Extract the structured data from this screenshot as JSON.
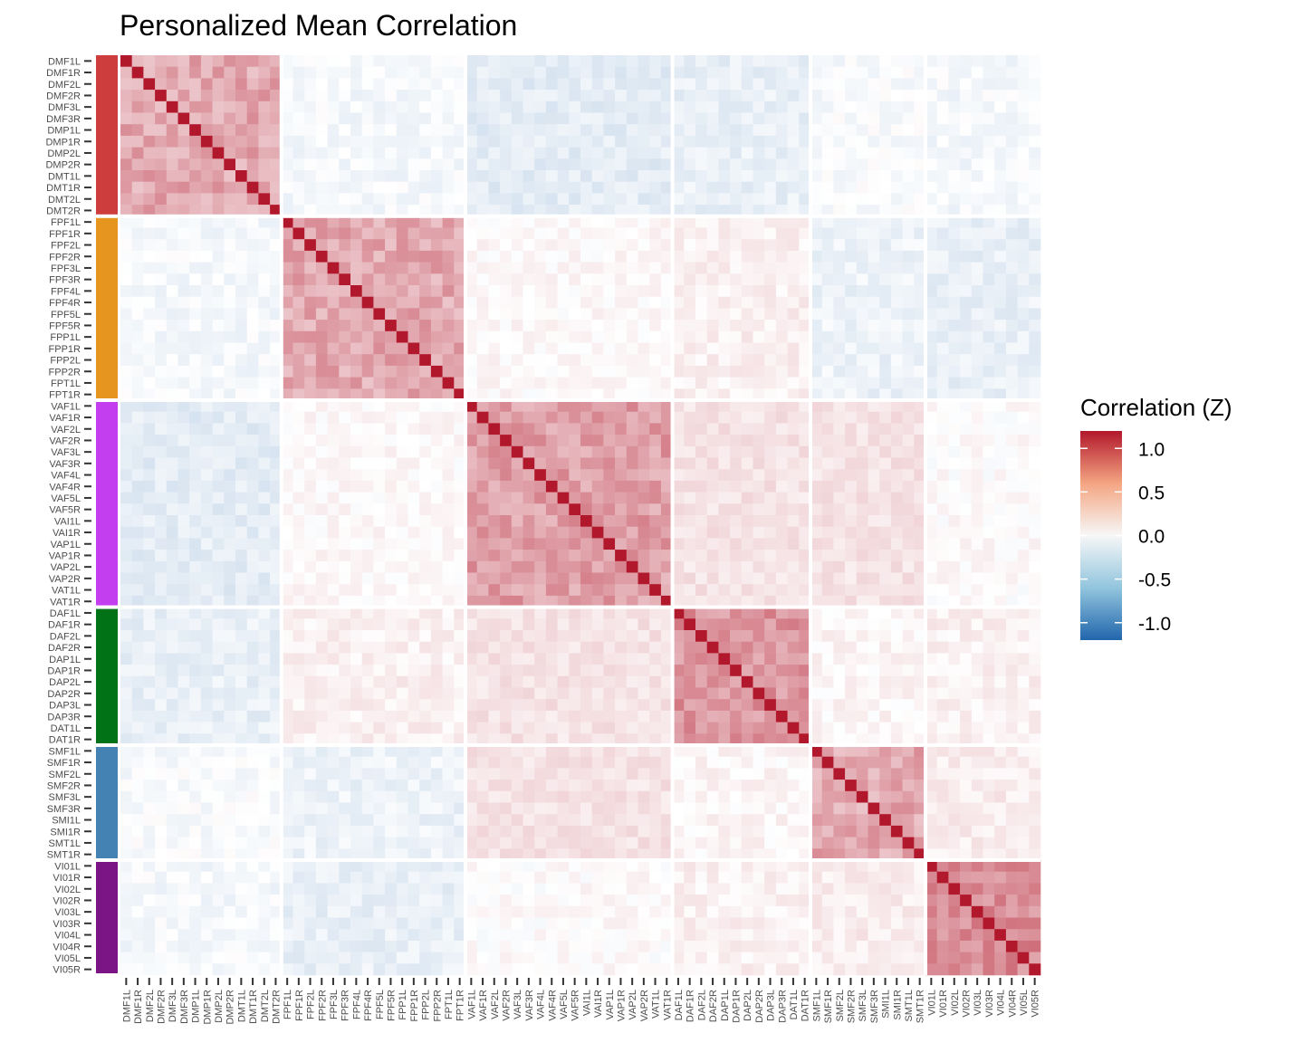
{
  "chart_data": {
    "type": "heatmap",
    "title": "Personalized Mean Correlation",
    "legend_title": "Correlation (Z)",
    "legend_ticks": [
      "1.0",
      "0.5",
      "0.0",
      "-0.5",
      "-1.0"
    ],
    "color_scale": {
      "low": "#2166ac",
      "mid": "#ffffff",
      "high": "#b2182b",
      "limits": [
        -1.2,
        1.2
      ]
    },
    "legend_placement": "right",
    "grid": false,
    "labels": [
      "DMF1L",
      "DMF1R",
      "DMF2L",
      "DMF2R",
      "DMF3L",
      "DMF3R",
      "DMP1L",
      "DMP1R",
      "DMP2L",
      "DMP2R",
      "DMT1L",
      "DMT1R",
      "DMT2L",
      "DMT2R",
      "FPF1L",
      "FPF1R",
      "FPF2L",
      "FPF2R",
      "FPF3L",
      "FPF3R",
      "FPF4L",
      "FPF4R",
      "FPF5L",
      "FPF5R",
      "FPP1L",
      "FPP1R",
      "FPP2L",
      "FPP2R",
      "FPT1L",
      "FPT1R",
      "VAF1L",
      "VAF1R",
      "VAF2L",
      "VAF2R",
      "VAF3L",
      "VAF3R",
      "VAF4L",
      "VAF4R",
      "VAF5L",
      "VAF5R",
      "VAI1L",
      "VAI1R",
      "VAP1L",
      "VAP1R",
      "VAP2L",
      "VAP2R",
      "VAT1L",
      "VAT1R",
      "DAF1L",
      "DAF1R",
      "DAF2L",
      "DAF2R",
      "DAP1L",
      "DAP1R",
      "DAP2L",
      "DAP2R",
      "DAP3L",
      "DAP3R",
      "DAT1L",
      "DAT1R",
      "SMF1L",
      "SMF1R",
      "SMF2L",
      "SMF2R",
      "SMF3L",
      "SMF3R",
      "SMI1L",
      "SMI1R",
      "SMT1L",
      "SMT1R",
      "VI01L",
      "VI01R",
      "VI02L",
      "VI02R",
      "VI03L",
      "VI03R",
      "VI04L",
      "VI04R",
      "VI05L",
      "VI05R"
    ],
    "networks": [
      {
        "name": "DM",
        "count": 14,
        "color": "#cd3d3d"
      },
      {
        "name": "FP",
        "count": 16,
        "color": "#e6951f"
      },
      {
        "name": "VA",
        "count": 18,
        "color": "#c33eef"
      },
      {
        "name": "DA",
        "count": 12,
        "color": "#027217"
      },
      {
        "name": "SM",
        "count": 10,
        "color": "#4582b4"
      },
      {
        "name": "VI",
        "count": 10,
        "color": "#7b1484"
      }
    ],
    "block_means": [
      [
        0.45,
        -0.05,
        -0.15,
        -0.12,
        -0.03,
        -0.05
      ],
      [
        -0.05,
        0.45,
        0.03,
        0.08,
        -0.1,
        -0.12
      ],
      [
        -0.15,
        0.03,
        0.5,
        0.15,
        0.15,
        0.02
      ],
      [
        -0.12,
        0.08,
        0.15,
        0.55,
        0.05,
        0.08
      ],
      [
        -0.03,
        -0.1,
        0.15,
        0.05,
        0.45,
        0.1
      ],
      [
        -0.05,
        -0.12,
        0.02,
        0.08,
        0.1,
        0.6
      ]
    ],
    "diagonal": 1.2
  }
}
